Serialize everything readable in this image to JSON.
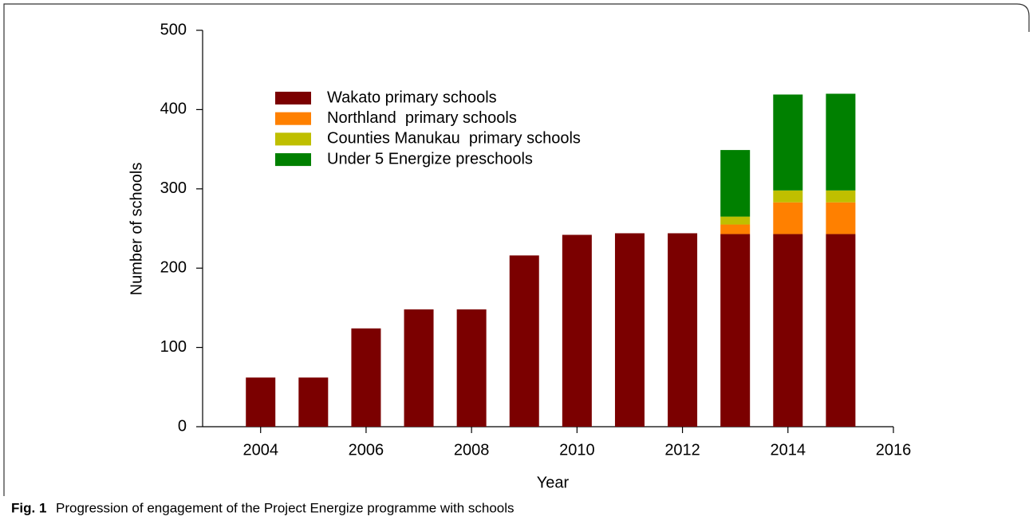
{
  "chart_data": {
    "type": "stacked_bar",
    "x_label": "Year",
    "y_label": "Number of schools",
    "x": [
      2004,
      2005,
      2006,
      2007,
      2008,
      2009,
      2010,
      2011,
      2012,
      2013,
      2014,
      2015
    ],
    "series": [
      {
        "name": "Wakato primary schools",
        "color": "#7b0000",
        "values": [
          62,
          62,
          124,
          148,
          148,
          216,
          242,
          244,
          244,
          243,
          243,
          243
        ]
      },
      {
        "name": "Northland  primary schools",
        "color": "#ff8000",
        "values": [
          null,
          null,
          null,
          null,
          null,
          null,
          null,
          null,
          null,
          12,
          40,
          40
        ]
      },
      {
        "name": "Counties Manukau  primary schools",
        "color": "#bfbf00",
        "values": [
          null,
          null,
          null,
          null,
          null,
          null,
          null,
          null,
          null,
          10,
          15,
          15
        ]
      },
      {
        "name": "Under 5 Energize preschools",
        "color": "#008000",
        "values": [
          null,
          null,
          null,
          null,
          null,
          null,
          null,
          null,
          null,
          84,
          121,
          122
        ]
      }
    ],
    "xlim": [
      2002.9,
      2016
    ],
    "xticks": [
      2004,
      2006,
      2008,
      2010,
      2012,
      2014,
      2016
    ],
    "ylim": [
      0,
      500
    ],
    "yticks": [
      0,
      100,
      200,
      300,
      400,
      500
    ],
    "legend": "upper left"
  },
  "caption": {
    "label": "Fig. 1",
    "text": "Progression of engagement of the Project Energize programme with schools"
  }
}
